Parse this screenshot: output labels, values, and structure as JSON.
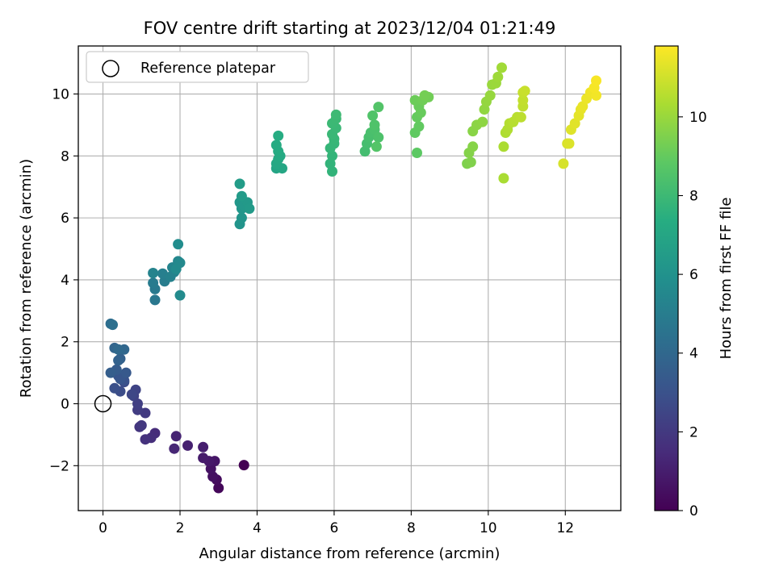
{
  "chart_data": {
    "type": "scatter",
    "title": "FOV centre drift starting at 2023/12/04 01:21:49",
    "xlabel": "Angular distance from reference (arcmin)",
    "ylabel": "Rotation from reference (arcmin)",
    "xlim": [
      -0.64,
      13.44
    ],
    "ylim": [
      -3.45,
      11.55
    ],
    "xticks": [
      0,
      2,
      4,
      6,
      8,
      10,
      12
    ],
    "yticks": [
      -2,
      0,
      2,
      4,
      6,
      8,
      10
    ],
    "grid": true,
    "legend": {
      "position": "top-left",
      "entries": [
        "Reference platepar"
      ]
    },
    "reference_point": {
      "x": 0,
      "y": 0,
      "label": "Reference platepar"
    },
    "colorbar": {
      "label": "Hours from first FF file",
      "colormap": "viridis",
      "range": [
        0,
        11.8
      ],
      "ticks": [
        0,
        2,
        4,
        6,
        8,
        10
      ]
    },
    "series": [
      {
        "points": [
          [
            3.66,
            -1.98,
            0.0
          ],
          [
            3.0,
            -2.72,
            0.2
          ],
          [
            2.95,
            -2.45,
            0.35
          ],
          [
            2.85,
            -2.35,
            0.5
          ],
          [
            2.8,
            -2.1,
            0.6
          ],
          [
            2.9,
            -1.85,
            0.7
          ],
          [
            2.75,
            -1.85,
            0.8
          ],
          [
            2.6,
            -1.75,
            0.9
          ],
          [
            2.6,
            -1.4,
            1.0
          ],
          [
            2.2,
            -1.35,
            1.1
          ],
          [
            1.9,
            -1.05,
            1.2
          ],
          [
            1.85,
            -1.45,
            1.3
          ],
          [
            1.35,
            -0.95,
            1.5
          ],
          [
            1.25,
            -1.1,
            1.6
          ],
          [
            1.1,
            -1.15,
            1.7
          ],
          [
            0.95,
            -0.75,
            1.85
          ],
          [
            1.0,
            -0.7,
            1.95
          ],
          [
            1.1,
            -0.3,
            2.05
          ],
          [
            0.9,
            -0.2,
            2.15
          ],
          [
            0.9,
            0.0,
            2.25
          ],
          [
            0.8,
            0.25,
            2.35
          ],
          [
            0.85,
            0.45,
            2.45
          ],
          [
            0.75,
            0.3,
            2.55
          ],
          [
            0.55,
            0.7,
            2.7
          ],
          [
            0.45,
            0.4,
            2.8
          ],
          [
            0.3,
            0.5,
            2.9
          ],
          [
            0.55,
            0.75,
            3.0
          ],
          [
            0.4,
            0.9,
            3.1
          ],
          [
            0.45,
            0.8,
            3.2
          ],
          [
            0.6,
            1.0,
            3.3
          ],
          [
            0.35,
            1.1,
            3.45
          ],
          [
            0.2,
            1.0,
            3.55
          ],
          [
            0.45,
            1.45,
            3.65
          ],
          [
            0.4,
            1.4,
            3.75
          ],
          [
            0.3,
            1.8,
            3.85
          ],
          [
            0.55,
            1.75,
            3.95
          ],
          [
            0.4,
            1.75,
            4.05
          ],
          [
            0.2,
            2.58,
            4.25
          ],
          [
            0.25,
            2.55,
            4.35
          ],
          [
            1.35,
            3.35,
            4.7
          ],
          [
            1.35,
            3.7,
            4.8
          ],
          [
            1.3,
            3.9,
            4.9
          ],
          [
            1.6,
            3.95,
            5.0
          ],
          [
            1.55,
            4.2,
            5.1
          ],
          [
            1.75,
            4.1,
            5.2
          ],
          [
            1.85,
            4.25,
            5.25
          ],
          [
            1.3,
            4.22,
            5.3
          ],
          [
            1.8,
            4.4,
            5.35
          ],
          [
            1.95,
            4.6,
            5.45
          ],
          [
            2.0,
            4.55,
            5.55
          ],
          [
            1.9,
            4.35,
            5.6
          ],
          [
            2.0,
            3.5,
            5.65
          ],
          [
            1.95,
            5.15,
            5.75
          ],
          [
            3.55,
            5.8,
            6.1
          ],
          [
            3.6,
            6.0,
            6.15
          ],
          [
            3.6,
            6.3,
            6.2
          ],
          [
            3.55,
            6.5,
            6.25
          ],
          [
            3.65,
            6.4,
            6.3
          ],
          [
            3.75,
            6.5,
            6.35
          ],
          [
            3.8,
            6.3,
            6.4
          ],
          [
            3.6,
            6.7,
            6.45
          ],
          [
            3.55,
            7.1,
            6.5
          ],
          [
            4.5,
            7.6,
            6.9
          ],
          [
            4.55,
            7.65,
            6.95
          ],
          [
            4.65,
            7.6,
            7.0
          ],
          [
            4.5,
            7.75,
            7.05
          ],
          [
            4.55,
            7.9,
            7.1
          ],
          [
            4.6,
            8.0,
            7.15
          ],
          [
            4.55,
            8.15,
            7.2
          ],
          [
            4.5,
            8.35,
            7.25
          ],
          [
            4.55,
            8.65,
            7.3
          ],
          [
            5.95,
            7.5,
            7.7
          ],
          [
            5.9,
            7.75,
            7.72
          ],
          [
            5.95,
            8.0,
            7.75
          ],
          [
            5.9,
            8.25,
            7.8
          ],
          [
            6.0,
            8.4,
            7.83
          ],
          [
            6.0,
            8.55,
            7.86
          ],
          [
            5.95,
            8.7,
            7.9
          ],
          [
            6.05,
            8.9,
            7.93
          ],
          [
            5.95,
            9.05,
            7.96
          ],
          [
            6.05,
            9.2,
            8.0
          ],
          [
            6.05,
            9.33,
            8.03
          ],
          [
            6.8,
            8.15,
            8.2
          ],
          [
            6.85,
            8.4,
            8.25
          ],
          [
            6.9,
            8.6,
            8.3
          ],
          [
            6.95,
            8.75,
            8.35
          ],
          [
            7.05,
            8.85,
            8.4
          ],
          [
            7.15,
            8.6,
            8.45
          ],
          [
            7.05,
            9.0,
            8.5
          ],
          [
            7.0,
            9.3,
            8.55
          ],
          [
            7.15,
            9.58,
            8.6
          ],
          [
            7.1,
            8.3,
            8.62
          ],
          [
            8.15,
            8.1,
            8.85
          ],
          [
            8.1,
            8.75,
            8.9
          ],
          [
            8.2,
            8.95,
            8.95
          ],
          [
            8.15,
            9.25,
            9.0
          ],
          [
            8.25,
            9.4,
            9.05
          ],
          [
            8.2,
            9.6,
            9.1
          ],
          [
            8.1,
            9.8,
            9.15
          ],
          [
            8.3,
            9.8,
            9.2
          ],
          [
            8.45,
            9.9,
            9.25
          ],
          [
            8.35,
            9.95,
            9.3
          ],
          [
            9.45,
            7.75,
            9.5
          ],
          [
            9.55,
            7.8,
            9.55
          ],
          [
            9.5,
            8.1,
            9.6
          ],
          [
            9.6,
            8.3,
            9.65
          ],
          [
            9.6,
            8.8,
            9.7
          ],
          [
            9.7,
            9.0,
            9.75
          ],
          [
            9.85,
            9.1,
            9.8
          ],
          [
            9.9,
            9.5,
            9.85
          ],
          [
            9.95,
            9.75,
            9.9
          ],
          [
            10.05,
            9.95,
            9.95
          ],
          [
            10.1,
            10.3,
            10.0
          ],
          [
            10.2,
            10.35,
            10.05
          ],
          [
            10.25,
            10.55,
            10.1
          ],
          [
            10.35,
            10.85,
            10.15
          ],
          [
            10.4,
            7.28,
            10.3
          ],
          [
            10.4,
            8.3,
            10.35
          ],
          [
            10.45,
            8.75,
            10.4
          ],
          [
            10.5,
            8.85,
            10.45
          ],
          [
            10.55,
            9.05,
            10.5
          ],
          [
            10.65,
            9.1,
            10.55
          ],
          [
            10.75,
            9.25,
            10.6
          ],
          [
            10.85,
            9.25,
            10.65
          ],
          [
            10.9,
            9.6,
            10.7
          ],
          [
            10.9,
            9.8,
            10.75
          ],
          [
            10.9,
            10.05,
            10.8
          ],
          [
            10.95,
            10.1,
            10.85
          ],
          [
            11.95,
            7.75,
            11.1
          ],
          [
            12.05,
            8.4,
            11.15
          ],
          [
            12.1,
            8.4,
            11.2
          ],
          [
            12.15,
            8.85,
            11.25
          ],
          [
            12.25,
            9.05,
            11.3
          ],
          [
            12.35,
            9.3,
            11.35
          ],
          [
            12.4,
            9.5,
            11.4
          ],
          [
            12.45,
            9.6,
            11.45
          ],
          [
            12.55,
            9.85,
            11.5
          ],
          [
            12.65,
            10.05,
            11.55
          ],
          [
            12.8,
            9.95,
            11.6
          ],
          [
            12.75,
            10.2,
            11.65
          ],
          [
            12.8,
            10.43,
            11.7
          ]
        ]
      }
    ]
  }
}
